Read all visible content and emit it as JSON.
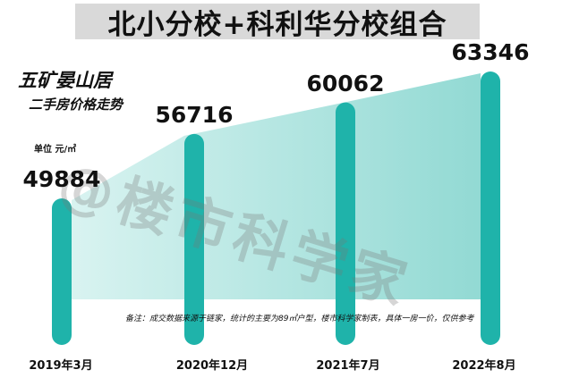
{
  "title": "北小分校+科利华分校组合",
  "subtitle_main": "五矿晏山居",
  "subtitle_sub": "二手房价格走势",
  "unit_label": "单位 元/㎡",
  "watermark": "@楼市科学家",
  "footnote": "备注：成交数据来源于链家，统计的主要为89㎡户型，楼市科学家制表，具体一房一价，仅供参考",
  "colors": {
    "bar": "#1fb3aa",
    "bar_dark": "#16948c",
    "area_light": "#d2f1ee",
    "area_dark": "#7fd3cc",
    "title_bg": "#d9d9d9"
  },
  "chart_data": {
    "type": "bar",
    "title": "北小分校+科利华分校组合",
    "categories": [
      "2019年3月",
      "2020年12月",
      "2021年7月",
      "2022年8月"
    ],
    "values": [
      49884,
      56716,
      60062,
      63346
    ],
    "value_labels": [
      "49884",
      "56716",
      "60062",
      "63346"
    ],
    "ylabel": "单位 元/㎡",
    "grid": false,
    "legend": "none"
  }
}
